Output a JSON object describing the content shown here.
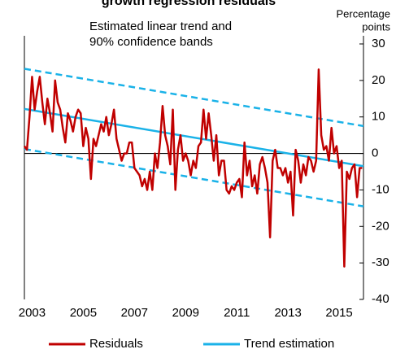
{
  "chart_data": {
    "type": "line",
    "title": "growth regression residuals",
    "subtitle": [
      "Estimated linear trend and",
      "90% confidence bands"
    ],
    "y_label": [
      "Percentage",
      "points"
    ],
    "xlim": [
      2002.7,
      2015.95
    ],
    "xticks": [
      2003,
      2005,
      2007,
      2009,
      2011,
      2013,
      2015
    ],
    "ylim": [
      -40,
      30
    ],
    "yticks": [
      30,
      20,
      10,
      0,
      -10,
      -20,
      -30,
      -40
    ],
    "x": [
      2002.7,
      2002.8,
      2002.9,
      2003.0,
      2003.1,
      2003.2,
      2003.3,
      2003.4,
      2003.5,
      2003.6,
      2003.7,
      2003.8,
      2003.9,
      2004.0,
      2004.1,
      2004.2,
      2004.3,
      2004.4,
      2004.5,
      2004.6,
      2004.7,
      2004.8,
      2004.9,
      2005.0,
      2005.1,
      2005.2,
      2005.3,
      2005.4,
      2005.5,
      2005.6,
      2005.7,
      2005.8,
      2005.9,
      2006.0,
      2006.1,
      2006.2,
      2006.3,
      2006.4,
      2006.5,
      2006.6,
      2006.7,
      2006.8,
      2006.9,
      2007.0,
      2007.1,
      2007.2,
      2007.3,
      2007.4,
      2007.5,
      2007.6,
      2007.7,
      2007.8,
      2007.9,
      2008.0,
      2008.1,
      2008.2,
      2008.3,
      2008.4,
      2008.5,
      2008.6,
      2008.7,
      2008.8,
      2008.9,
      2009.0,
      2009.1,
      2009.2,
      2009.3,
      2009.4,
      2009.5,
      2009.6,
      2009.7,
      2009.8,
      2009.9,
      2010.0,
      2010.1,
      2010.2,
      2010.3,
      2010.4,
      2010.5,
      2010.6,
      2010.7,
      2010.8,
      2010.9,
      2011.0,
      2011.1,
      2011.2,
      2011.3,
      2011.4,
      2011.5,
      2011.6,
      2011.7,
      2011.8,
      2011.9,
      2012.0,
      2012.1,
      2012.2,
      2012.3,
      2012.4,
      2012.5,
      2012.6,
      2012.7,
      2012.8,
      2012.9,
      2013.0,
      2013.1,
      2013.2,
      2013.3,
      2013.4,
      2013.5,
      2013.6,
      2013.7,
      2013.8,
      2013.9,
      2014.0,
      2014.1,
      2014.2,
      2014.3,
      2014.4,
      2014.5,
      2014.6,
      2014.7,
      2014.8,
      2014.9,
      2015.0,
      2015.1,
      2015.2,
      2015.3,
      2015.4,
      2015.5,
      2015.6,
      2015.7,
      2015.8,
      2015.9
    ],
    "series": [
      {
        "name": "Residuals",
        "color": "#c00000",
        "values": [
          2,
          1,
          10,
          21,
          12,
          17,
          21,
          14,
          8,
          15,
          11,
          6,
          20,
          14,
          12,
          7,
          3,
          11,
          9,
          6,
          10,
          12,
          11,
          2,
          7,
          4,
          -7,
          4,
          2,
          5,
          8,
          6,
          10,
          5,
          8,
          12,
          4,
          1,
          -2,
          0,
          0,
          3,
          3,
          -4,
          -5,
          -6,
          -9,
          -7,
          -10,
          -5,
          -10,
          0,
          -4,
          3,
          13,
          5,
          2,
          -3,
          12,
          -10,
          1,
          5,
          -2,
          0,
          -2,
          -6,
          -2,
          -4,
          2,
          3,
          12,
          4,
          11,
          5,
          -2,
          5,
          -6,
          -2,
          -2,
          -10,
          -11,
          -9,
          -10,
          -8,
          -7,
          -12,
          3,
          -6,
          -2,
          -9,
          -6,
          -11,
          -3,
          -1,
          -4,
          -8,
          -23,
          -2,
          1,
          -4,
          -4,
          -6,
          -4,
          -8,
          -5,
          -17,
          1,
          -2,
          -8,
          -3,
          -6,
          -1,
          -2,
          -5,
          -2,
          23,
          5,
          1,
          2,
          -2,
          7,
          0,
          2,
          -4,
          -2,
          -31,
          -5,
          -7,
          -4,
          -3,
          -12,
          -4,
          -4
        ]
      },
      {
        "name": "Trend estimation",
        "color": "#1ab2e8",
        "x": [
          2002.7,
          2015.95
        ],
        "values": [
          12.2,
          -3.5
        ]
      }
    ],
    "bands": {
      "color": "#1ab2e8",
      "dashed": true,
      "x": [
        2002.7,
        2015.95
      ],
      "upper": [
        23.2,
        7.5
      ],
      "lower": [
        1.2,
        -14.5
      ]
    }
  }
}
